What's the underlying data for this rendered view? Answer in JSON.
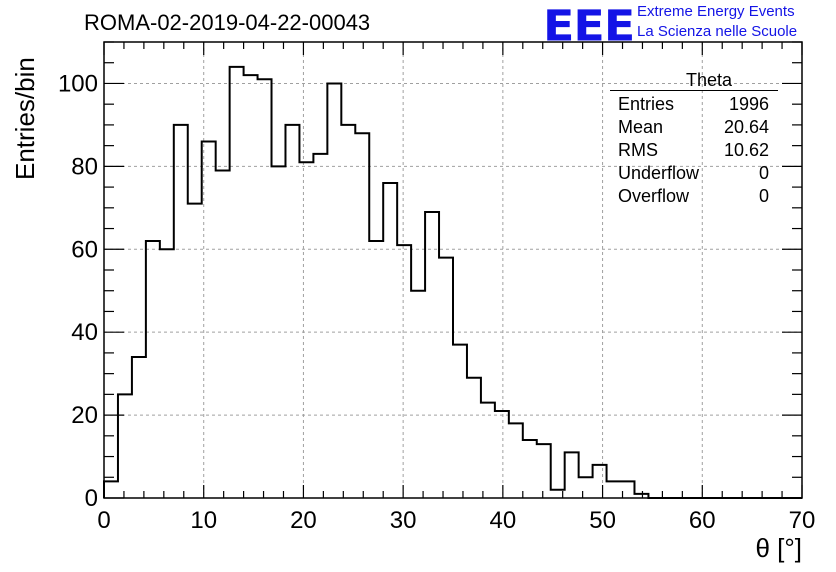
{
  "header": {
    "run_title": "ROMA-02-2019-04-22-00043",
    "logo_text": "EEE",
    "logo_line1": "Extreme Energy Events",
    "logo_line2": "La Scienza nelle Scuole"
  },
  "stats_box": {
    "title": "Theta",
    "rows": [
      {
        "label": "Entries",
        "value": "1996"
      },
      {
        "label": "Mean",
        "value": "20.64"
      },
      {
        "label": "RMS",
        "value": "10.62"
      },
      {
        "label": "Underflow",
        "value": "0"
      },
      {
        "label": "Overflow",
        "value": "0"
      }
    ]
  },
  "chart_data": {
    "type": "bar",
    "histogram": true,
    "xlabel": "θ [°]",
    "ylabel": "Entries/bin",
    "xlim": [
      0,
      70
    ],
    "ylim": [
      0,
      110
    ],
    "grid": true,
    "bin_width": 1.4,
    "xticks": [
      0,
      10,
      20,
      30,
      40,
      50,
      60,
      70
    ],
    "yticks": [
      0,
      20,
      40,
      60,
      80,
      100
    ],
    "values": [
      4,
      25,
      34,
      62,
      60,
      90,
      71,
      86,
      79,
      104,
      102,
      101,
      80,
      90,
      81,
      83,
      100,
      90,
      88,
      62,
      76,
      61,
      50,
      69,
      58,
      37,
      29,
      23,
      21,
      18,
      14,
      13,
      2,
      11,
      5,
      8,
      4,
      4,
      1,
      0,
      0,
      0,
      0,
      0,
      0,
      0,
      0,
      0,
      0,
      0
    ]
  }
}
